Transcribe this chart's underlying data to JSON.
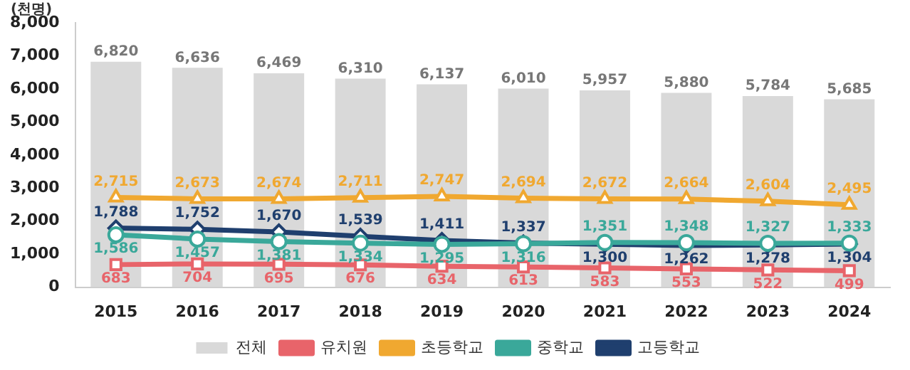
{
  "chart_data": {
    "type": "bar",
    "ylabel": "(천명)",
    "categories": [
      "2015",
      "2016",
      "2017",
      "2018",
      "2019",
      "2020",
      "2021",
      "2022",
      "2023",
      "2024"
    ],
    "series": [
      {
        "name": "전체",
        "color": "#d9d9d9",
        "values": [
          6820,
          6636,
          6469,
          6310,
          6137,
          6010,
          5957,
          5880,
          5784,
          5685
        ],
        "value_labels": [
          "6,820",
          "6,636",
          "6,469",
          "6,310",
          "6,137",
          "6,010",
          "5,957",
          "5,880",
          "5,784",
          "5,685"
        ]
      },
      {
        "name": "유치원",
        "type": "line",
        "marker": "square",
        "color": "#e8646a",
        "values": [
          683,
          704,
          695,
          676,
          634,
          613,
          583,
          553,
          522,
          499
        ],
        "value_labels": [
          "683",
          "704",
          "695",
          "676",
          "634",
          "613",
          "583",
          "553",
          "522",
          "499"
        ]
      },
      {
        "name": "초등학교",
        "type": "line",
        "marker": "triangle",
        "color": "#f0a830",
        "values": [
          2715,
          2673,
          2674,
          2711,
          2747,
          2694,
          2672,
          2664,
          2604,
          2495
        ],
        "value_labels": [
          "2,715",
          "2,673",
          "2,674",
          "2,711",
          "2,747",
          "2,694",
          "2,672",
          "2,664",
          "2,604",
          "2,495"
        ]
      },
      {
        "name": "중학교",
        "type": "line",
        "marker": "circle",
        "color": "#3aa89a",
        "values": [
          1586,
          1457,
          1381,
          1334,
          1295,
          1316,
          1351,
          1348,
          1327,
          1333
        ],
        "value_labels": [
          "1,586",
          "1,457",
          "1,381",
          "1,334",
          "1,295",
          "1,316",
          "1,351",
          "1,348",
          "1,327",
          "1,333"
        ]
      },
      {
        "name": "고등학교",
        "type": "line",
        "marker": "diamond",
        "color": "#1f3f6e",
        "values": [
          1788,
          1752,
          1670,
          1539,
          1411,
          1337,
          1300,
          1262,
          1278,
          1304
        ],
        "value_labels": [
          "1,788",
          "1,752",
          "1,670",
          "1,539",
          "1,411",
          "1,337",
          "1,300",
          "1,262",
          "1,278",
          "1,304"
        ]
      }
    ],
    "ylim": [
      0,
      8000
    ],
    "yticks": [
      0,
      {
        "value": 1000,
        "label": "1,000"
      },
      {
        "value": 2000,
        "label": "2,000"
      },
      {
        "value": 3000,
        "label": "3,000"
      },
      {
        "value": 4000,
        "label": "4,000"
      },
      {
        "value": 5000,
        "label": "5,000"
      },
      {
        "value": 6000,
        "label": "6,000"
      },
      {
        "value": 7000,
        "label": "7,000"
      },
      {
        "value": 8000,
        "label": "8,000"
      }
    ],
    "grid": false,
    "legend": "bottom"
  }
}
